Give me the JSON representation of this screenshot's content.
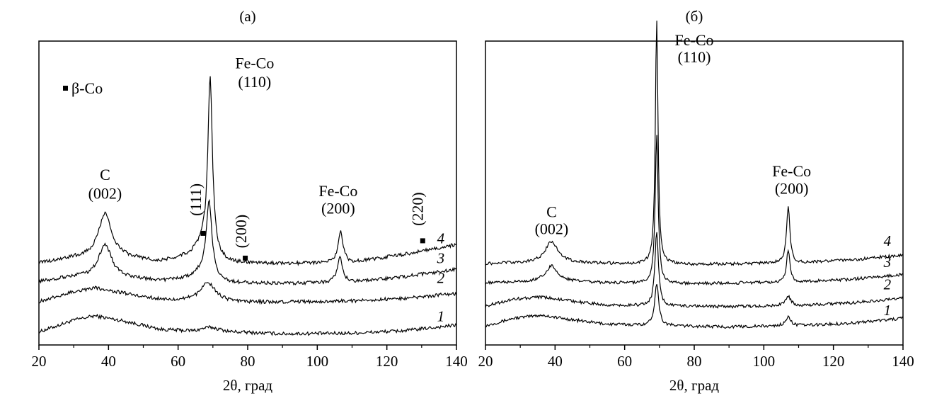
{
  "chart_data": [
    {
      "type": "line",
      "title": "(а)",
      "xlabel": "2θ, град",
      "ylabel": "",
      "xlim": [
        20,
        140
      ],
      "xticks": [
        "20",
        "40",
        "60",
        "80",
        "100",
        "120",
        "140"
      ],
      "grid": false,
      "legend": {
        "symbol": "■",
        "label": "β-Co",
        "placement": "top-left"
      },
      "series": [
        {
          "name": "1",
          "offset": 0.7,
          "baseline": [
            [
              20,
              0.35
            ],
            [
              30,
              1.3
            ],
            [
              36,
              1.65
            ],
            [
              45,
              1.2
            ],
            [
              55,
              0.55
            ],
            [
              65,
              0.4
            ],
            [
              70,
              0.55
            ],
            [
              75,
              0.35
            ],
            [
              90,
              0.2
            ],
            [
              110,
              0.25
            ],
            [
              125,
              0.45
            ],
            [
              140,
              0.9
            ]
          ],
          "peaks": [
            [
              68.5,
              0.2,
              3.0
            ]
          ]
        },
        {
          "name": "2",
          "offset": 3.4,
          "baseline": [
            [
              20,
              0.1
            ],
            [
              30,
              0.9
            ],
            [
              36,
              1.2
            ],
            [
              45,
              0.75
            ],
            [
              55,
              0.25
            ],
            [
              62,
              0.2
            ],
            [
              75,
              0.05
            ],
            [
              90,
              0.05
            ],
            [
              110,
              0.15
            ],
            [
              125,
              0.35
            ],
            [
              140,
              0.75
            ]
          ],
          "peaks": [
            [
              68.6,
              1.5,
              2.6
            ]
          ]
        },
        {
          "name": "3",
          "offset": 4.9,
          "baseline": [
            [
              20,
              0.2
            ],
            [
              30,
              0.6
            ],
            [
              45,
              0.5
            ],
            [
              55,
              0.25
            ],
            [
              65,
              0.5
            ],
            [
              75,
              0.1
            ],
            [
              90,
              0.05
            ],
            [
              110,
              0.15
            ],
            [
              125,
              0.6
            ],
            [
              140,
              1.2
            ]
          ],
          "peaks": [
            [
              39,
              2.7,
              2.2
            ],
            [
              68.9,
              6.3,
              1.0
            ],
            [
              66.5,
              0.4,
              1.5
            ],
            [
              106.5,
              2.1,
              0.9
            ]
          ]
        },
        {
          "name": "4",
          "offset": 6.5,
          "baseline": [
            [
              20,
              0.1
            ],
            [
              30,
              0.5
            ],
            [
              45,
              0.5
            ],
            [
              55,
              0.2
            ],
            [
              65,
              0.8
            ],
            [
              75,
              0.1
            ],
            [
              90,
              0.05
            ],
            [
              110,
              0.15
            ],
            [
              125,
              0.8
            ],
            [
              140,
              1.6
            ]
          ],
          "peaks": [
            [
              39,
              3.6,
              2.3
            ],
            [
              69.2,
              14.5,
              0.8
            ],
            [
              66.8,
              0.9,
              1.3
            ],
            [
              106.7,
              2.5,
              0.85
            ]
          ]
        }
      ],
      "markers": [
        {
          "symbol": "■",
          "x": 67.2,
          "y": 9.0
        },
        {
          "symbol": "■",
          "x": 79.3,
          "y": 7.0
        },
        {
          "symbol": "■",
          "x": 130.3,
          "y": 8.4
        }
      ],
      "annotations": [
        {
          "text": "C",
          "x": 39,
          "y": 13.3
        },
        {
          "text": "(002)",
          "x": 39,
          "y": 11.8
        },
        {
          "text": "Fe-Co",
          "x": 82,
          "y": 22.3
        },
        {
          "text": "(110)",
          "x": 82,
          "y": 20.8
        },
        {
          "text": "Fe-Co",
          "x": 106,
          "y": 12.0
        },
        {
          "text": "(200)",
          "x": 106,
          "y": 10.6
        },
        {
          "text": "(111)",
          "x": 66.6,
          "y": 10.4,
          "rotate": true
        },
        {
          "text": "(200)",
          "x": 79.6,
          "y": 7.8,
          "rotate": true
        },
        {
          "text": "(220)",
          "x": 130.3,
          "y": 9.6,
          "rotate": true
        }
      ],
      "curve_labels": [
        {
          "text": "4",
          "x": 135.5,
          "y": 8.2
        },
        {
          "text": "3",
          "x": 135.5,
          "y": 6.6
        },
        {
          "text": "2",
          "x": 135.5,
          "y": 5.0
        },
        {
          "text": "1",
          "x": 135.5,
          "y": 1.9
        }
      ]
    },
    {
      "type": "line",
      "title": "(б)",
      "xlabel": "2θ, град",
      "ylabel": "",
      "xlim": [
        20,
        140
      ],
      "xticks": [
        "20",
        "40",
        "60",
        "80",
        "100",
        "120",
        "140"
      ],
      "grid": false,
      "series": [
        {
          "name": "1",
          "offset": 1.6,
          "baseline": [
            [
              20,
              0.2
            ],
            [
              28,
              0.9
            ],
            [
              36,
              1.2
            ],
            [
              45,
              0.75
            ],
            [
              55,
              0.35
            ],
            [
              70,
              0.2
            ],
            [
              90,
              0.1
            ],
            [
              110,
              0.2
            ],
            [
              125,
              0.45
            ],
            [
              140,
              0.9
            ]
          ],
          "peaks": [
            [
              69.2,
              4.0,
              0.7
            ],
            [
              107,
              0.8,
              1.0
            ]
          ]
        },
        {
          "name": "2",
          "offset": 3.5,
          "baseline": [
            [
              20,
              0.15
            ],
            [
              28,
              0.8
            ],
            [
              36,
              1.0
            ],
            [
              45,
              0.6
            ],
            [
              55,
              0.25
            ],
            [
              70,
              0.15
            ],
            [
              90,
              0.1
            ],
            [
              110,
              0.2
            ],
            [
              125,
              0.45
            ],
            [
              140,
              0.9
            ]
          ],
          "peaks": [
            [
              69.2,
              7.0,
              0.6
            ],
            [
              107,
              0.9,
              0.9
            ]
          ]
        },
        {
          "name": "3",
          "offset": 5.7,
          "baseline": [
            [
              20,
              0.1
            ],
            [
              30,
              0.2
            ],
            [
              45,
              0.2
            ],
            [
              60,
              0.1
            ],
            [
              80,
              0.05
            ],
            [
              110,
              0.2
            ],
            [
              125,
              0.45
            ],
            [
              140,
              0.9
            ]
          ],
          "peaks": [
            [
              39,
              1.5,
              2.2
            ],
            [
              69.2,
              14.0,
              0.5
            ],
            [
              107,
              3.0,
              0.6
            ]
          ]
        },
        {
          "name": "4",
          "offset": 7.5,
          "baseline": [
            [
              20,
              0.1
            ],
            [
              30,
              0.2
            ],
            [
              45,
              0.2
            ],
            [
              60,
              0.1
            ],
            [
              80,
              0.05
            ],
            [
              110,
              0.2
            ],
            [
              125,
              0.45
            ],
            [
              140,
              0.95
            ]
          ],
          "peaks": [
            [
              39,
              2.0,
              2.2
            ],
            [
              69.2,
              23.0,
              0.45
            ],
            [
              107,
              5.3,
              0.6
            ]
          ]
        }
      ],
      "annotations": [
        {
          "text": "Fe-Co",
          "x": 80,
          "y": 28.1
        },
        {
          "text": "(110)",
          "x": 80,
          "y": 26.5
        },
        {
          "text": "Fe-Co",
          "x": 108,
          "y": 15.8
        },
        {
          "text": "(200)",
          "x": 108,
          "y": 14.2
        },
        {
          "text": "C",
          "x": 39,
          "y": 12.0
        },
        {
          "text": "(002)",
          "x": 39,
          "y": 10.4
        }
      ],
      "curve_labels": [
        {
          "text": "4",
          "x": 135.5,
          "y": 9.3
        },
        {
          "text": "3",
          "x": 135.5,
          "y": 7.3
        },
        {
          "text": "2",
          "x": 135.5,
          "y": 5.2
        },
        {
          "text": "1",
          "x": 135.5,
          "y": 2.8
        }
      ]
    }
  ]
}
